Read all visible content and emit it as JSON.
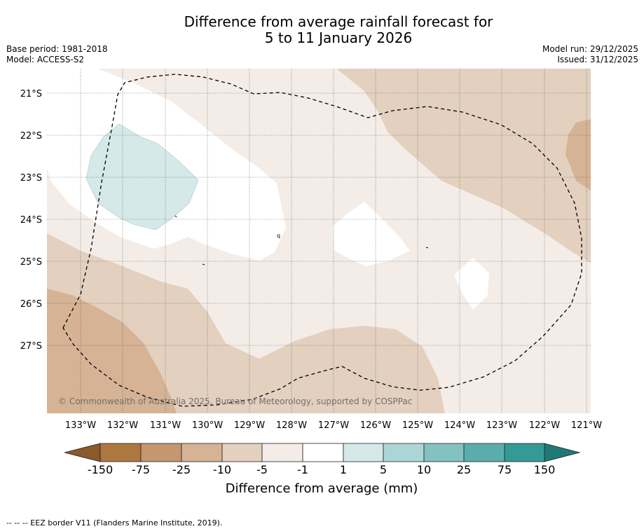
{
  "title": {
    "line1": "Difference from average rainfall forecast for",
    "line2": "5 to 11 January 2026"
  },
  "info_left": {
    "base_period": "Base period: 1981-2018",
    "model": "Model: ACCESS-S2"
  },
  "info_right": {
    "model_run": "Model run: 29/12/2025",
    "issued": "Issued: 31/12/2025"
  },
  "map": {
    "lat_labels": [
      "21°S",
      "22°S",
      "23°S",
      "24°S",
      "25°S",
      "26°S",
      "27°S"
    ],
    "lon_labels": [
      "133°W",
      "132°W",
      "131°W",
      "130°W",
      "129°W",
      "128°W",
      "127°W",
      "126°W",
      "125°W",
      "124°W",
      "123°W",
      "122°W",
      "121°W"
    ],
    "copyright": "© Commonwealth of Australia 2025, Bureau of Meteorology, supported by COSPPac",
    "marker_label": "q"
  },
  "colorbar": {
    "ticks": [
      "-150",
      "-75",
      "-25",
      "-10",
      "-5",
      "-1",
      "1",
      "5",
      "10",
      "25",
      "75",
      "150"
    ],
    "colors": {
      "lt_-150": "#8a5a2b",
      "-150_-75": "#ad7740",
      "-75_-25": "#c49770",
      "-25_-10": "#d5b394",
      "-10_-5": "#e3d0bf",
      "-5_-1": "#f4ede7",
      "-1_1": "#ffffff",
      "1_5": "#d5e9e8",
      "5_10": "#acd6d5",
      "10_25": "#84c2c0",
      "25_75": "#5badab",
      "75_150": "#339a96",
      "gt_150": "#1f7975"
    },
    "label": "Difference from average (mm)"
  },
  "footnote": "--  --  -- EEZ border V11 (Flanders Marine Institute, 2019)."
}
